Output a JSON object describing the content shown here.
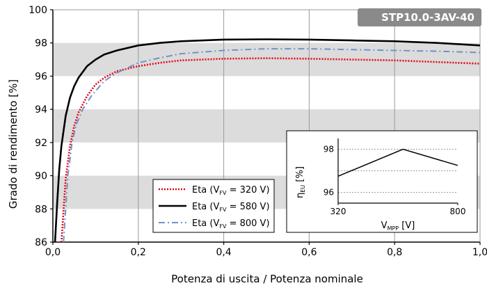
{
  "chart_data": {
    "type": "line",
    "model_label": "STP10.0-3AV-40",
    "xlabel": "Potenza di uscita / Potenza nominale",
    "ylabel": "Grado di rendimento [%]",
    "xlim": [
      0,
      1
    ],
    "ylim": [
      86,
      100
    ],
    "x_ticks": [
      "0,0",
      "0,2",
      "0,4",
      "0,6",
      "0,8",
      "1,0"
    ],
    "y_ticks": [
      "86",
      "88",
      "90",
      "92",
      "94",
      "96",
      "98",
      "100"
    ],
    "grid": true,
    "bands": [
      [
        88,
        90
      ],
      [
        92,
        94
      ],
      [
        96,
        98
      ]
    ],
    "legend": {
      "placement": "bottom-left"
    },
    "series": [
      {
        "name_prefix": "Eta (V",
        "name_sub": "FV",
        "name_suffix": " = 320 V)",
        "color": "#e30613",
        "dash": "dotted",
        "x": [
          0.02,
          0.03,
          0.04,
          0.05,
          0.06,
          0.08,
          0.1,
          0.12,
          0.15,
          0.2,
          0.25,
          0.3,
          0.4,
          0.5,
          0.6,
          0.7,
          0.8,
          0.9,
          1.0
        ],
        "y": [
          86.0,
          89.8,
          91.8,
          93.0,
          93.8,
          94.8,
          95.5,
          95.9,
          96.3,
          96.6,
          96.8,
          96.95,
          97.05,
          97.08,
          97.05,
          97.0,
          96.95,
          96.85,
          96.75
        ]
      },
      {
        "name_prefix": "Eta (V",
        "name_sub": "FV",
        "name_suffix": " = 580 V)",
        "color": "#000000",
        "dash": "solid",
        "x": [
          0.005,
          0.01,
          0.015,
          0.02,
          0.03,
          0.04,
          0.05,
          0.06,
          0.08,
          0.1,
          0.12,
          0.15,
          0.2,
          0.25,
          0.3,
          0.4,
          0.5,
          0.6,
          0.7,
          0.8,
          0.9,
          1.0
        ],
        "y": [
          86.0,
          88.3,
          90.4,
          91.8,
          93.6,
          94.7,
          95.4,
          95.9,
          96.6,
          97.0,
          97.3,
          97.55,
          97.85,
          98.0,
          98.1,
          98.2,
          98.22,
          98.2,
          98.15,
          98.1,
          98.0,
          97.85
        ]
      },
      {
        "name_prefix": "Eta (V",
        "name_sub": "FV",
        "name_suffix": " = 800 V)",
        "color": "#6f93c7",
        "dash": "dashdot",
        "x": [
          0.025,
          0.035,
          0.045,
          0.055,
          0.07,
          0.09,
          0.1,
          0.12,
          0.15,
          0.2,
          0.25,
          0.3,
          0.4,
          0.5,
          0.6,
          0.7,
          0.8,
          0.9,
          1.0
        ],
        "y": [
          86.0,
          90.0,
          92.0,
          93.1,
          94.0,
          94.8,
          95.1,
          95.7,
          96.2,
          96.8,
          97.1,
          97.35,
          97.55,
          97.65,
          97.65,
          97.6,
          97.55,
          97.5,
          97.42
        ]
      }
    ],
    "inset": {
      "xlabel_main": "V",
      "xlabel_sub": "MPP",
      "xlabel_suffix": " [V]",
      "ylabel_main": "η",
      "ylabel_sub": "EU",
      "ylabel_suffix": " [%]",
      "x_ticks": [
        "320",
        "800"
      ],
      "y_ticks": [
        "96",
        "98"
      ],
      "xlim": [
        320,
        800
      ],
      "ylim": [
        95.5,
        98.5
      ],
      "series": {
        "x": [
          320,
          580,
          800
        ],
        "y": [
          96.75,
          98.0,
          97.25
        ],
        "color": "#000000"
      }
    }
  }
}
